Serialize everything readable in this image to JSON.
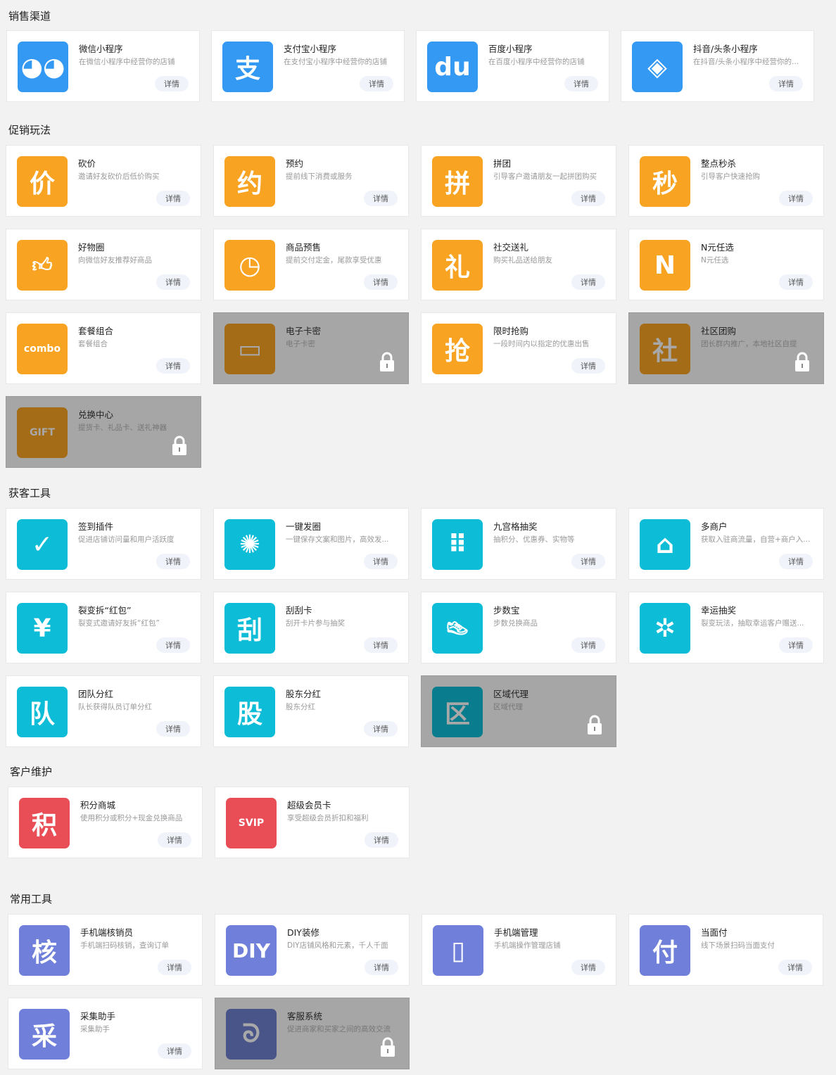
{
  "colors": {
    "blue": "#3399f3",
    "orange": "#f9a322",
    "cyan": "#0dbdd7",
    "red": "#e94d56",
    "purple": "#7080da",
    "navy": "#6f7fd0"
  },
  "detail_label": "详情",
  "sections": [
    {
      "title": "销售渠道",
      "items": [
        {
          "title": "微信小程序",
          "desc": "在微信小程序中经营你的店铺",
          "icon": "wechat-icon",
          "glyph": "◕◕",
          "color": "blue"
        },
        {
          "title": "支付宝小程序",
          "desc": "在支付宝小程序中经营你的店铺",
          "icon": "alipay-icon",
          "glyph": "支",
          "color": "blue"
        },
        {
          "title": "百度小程序",
          "desc": "在百度小程序中经营你的店铺",
          "icon": "baidu-paw-icon",
          "glyph": "du",
          "color": "blue"
        },
        {
          "title": "抖音/头条小程序",
          "desc": "在抖音/头条小程序中经营你的...",
          "icon": "link-icon",
          "glyph": "◈",
          "color": "blue"
        }
      ]
    },
    {
      "title": "促销玩法",
      "items": [
        {
          "title": "砍价",
          "desc": "邀请好友砍价后低价购买",
          "icon": "bargain-icon",
          "glyph": "价",
          "color": "orange"
        },
        {
          "title": "预约",
          "desc": "提前线下消费或服务",
          "icon": "reservation-icon",
          "glyph": "约",
          "color": "orange"
        },
        {
          "title": "拼团",
          "desc": "引导客户邀请朋友一起拼团购买",
          "icon": "group-buy-icon",
          "glyph": "拼",
          "color": "orange"
        },
        {
          "title": "整点秒杀",
          "desc": "引导客户快速抢购",
          "icon": "flash-sale-icon",
          "glyph": "秒",
          "color": "orange"
        },
        {
          "title": "好物圈",
          "desc": "向微信好友推荐好商品",
          "icon": "thumbs-up-icon",
          "glyph": "👍︎",
          "color": "orange"
        },
        {
          "title": "商品预售",
          "desc": "提前交付定金，尾款享受优惠",
          "icon": "presale-bag-icon",
          "glyph": "◷",
          "color": "orange"
        },
        {
          "title": "社交送礼",
          "desc": "购买礼品送给朋友",
          "icon": "gift-hand-icon",
          "glyph": "礼",
          "color": "orange"
        },
        {
          "title": "N元任选",
          "desc": "N元任选",
          "icon": "n-letter-icon",
          "glyph": "N",
          "color": "orange"
        },
        {
          "title": "套餐组合",
          "desc": "套餐组合",
          "icon": "combo-icon",
          "glyph": "combo",
          "color": "orange"
        },
        {
          "title": "电子卡密",
          "desc": "电子卡密",
          "icon": "ecard-icon",
          "glyph": "▭",
          "color": "orange",
          "locked": true
        },
        {
          "title": "限时抢购",
          "desc": "一段时间内以指定的优惠出售",
          "icon": "clock-icon",
          "glyph": "抢",
          "color": "orange"
        },
        {
          "title": "社区团购",
          "desc": "团长群内推广，本地社区自提",
          "icon": "community-bag-icon",
          "glyph": "社",
          "color": "orange",
          "locked": true
        },
        {
          "title": "兑换中心",
          "desc": "提货卡、礼品卡、送礼神器",
          "icon": "gift-card-icon",
          "glyph": "GIFT",
          "color": "orange",
          "locked": true
        }
      ]
    },
    {
      "title": "获客工具",
      "items": [
        {
          "title": "签到插件",
          "desc": "促进店铺访问量和用户活跃度",
          "icon": "calendar-check-icon",
          "glyph": "✓",
          "color": "cyan"
        },
        {
          "title": "一键发圈",
          "desc": "一键保存文案和图片，高效发...",
          "icon": "aperture-icon",
          "glyph": "✺",
          "color": "cyan"
        },
        {
          "title": "九宫格抽奖",
          "desc": "抽积分、优惠券、实物等",
          "icon": "grid-lottery-icon",
          "glyph": "⠿",
          "color": "cyan"
        },
        {
          "title": "多商户",
          "desc": "获取入驻商流量，自营+商户入...",
          "icon": "store-icon",
          "glyph": "⌂",
          "color": "cyan"
        },
        {
          "title": "裂变拆“红包”",
          "desc": "裂变式邀请好友拆“红包”",
          "icon": "red-envelope-icon",
          "glyph": "¥",
          "color": "cyan"
        },
        {
          "title": "刮刮卡",
          "desc": "刮开卡片参与抽奖",
          "icon": "scratch-card-icon",
          "glyph": "刮",
          "color": "cyan"
        },
        {
          "title": "步数宝",
          "desc": "步数兑换商品",
          "icon": "sneaker-icon",
          "glyph": "👟︎",
          "color": "cyan"
        },
        {
          "title": "幸运抽奖",
          "desc": "裂变玩法，抽取幸运客户赠送...",
          "icon": "wheel-icon",
          "glyph": "✲",
          "color": "cyan"
        },
        {
          "title": "团队分红",
          "desc": "队长获得队员订单分红",
          "icon": "team-dividend-icon",
          "glyph": "队",
          "color": "cyan"
        },
        {
          "title": "股东分红",
          "desc": "股东分红",
          "icon": "shareholder-icon",
          "glyph": "股",
          "color": "cyan"
        },
        {
          "title": "区域代理",
          "desc": "区域代理",
          "icon": "region-agent-icon",
          "glyph": "区",
          "color": "cyan",
          "locked": true
        }
      ]
    },
    {
      "title": "客户维护",
      "items": [
        {
          "title": "积分商城",
          "desc": "使用积分或积分+现金兑换商品",
          "icon": "points-icon",
          "glyph": "积",
          "color": "red"
        },
        {
          "title": "超级会员卡",
          "desc": "享受超级会员折扣和福利",
          "icon": "svip-card-icon",
          "glyph": "SVIP",
          "color": "red"
        }
      ]
    },
    {
      "title": "常用工具",
      "items": [
        {
          "title": "手机端核销员",
          "desc": "手机端扫码核销，查询订单",
          "icon": "verifier-icon",
          "glyph": "核",
          "color": "purple"
        },
        {
          "title": "DIY装修",
          "desc": "DIY店铺风格和元素，千人千面",
          "icon": "diy-icon",
          "glyph": "DIY",
          "color": "purple"
        },
        {
          "title": "手机端管理",
          "desc": "手机端操作管理店铺",
          "icon": "phone-icon",
          "glyph": "▯",
          "color": "purple"
        },
        {
          "title": "当面付",
          "desc": "线下场景扫码当面支付",
          "icon": "pay-icon",
          "glyph": "付",
          "color": "purple"
        },
        {
          "title": "采集助手",
          "desc": "采集助手",
          "icon": "collect-icon",
          "glyph": "采",
          "color": "purple"
        },
        {
          "title": "客服系统",
          "desc": "促进商家和买家之间的高效交流",
          "icon": "customer-service-icon",
          "glyph": "ᘐ",
          "color": "navy",
          "locked": true
        }
      ]
    }
  ]
}
